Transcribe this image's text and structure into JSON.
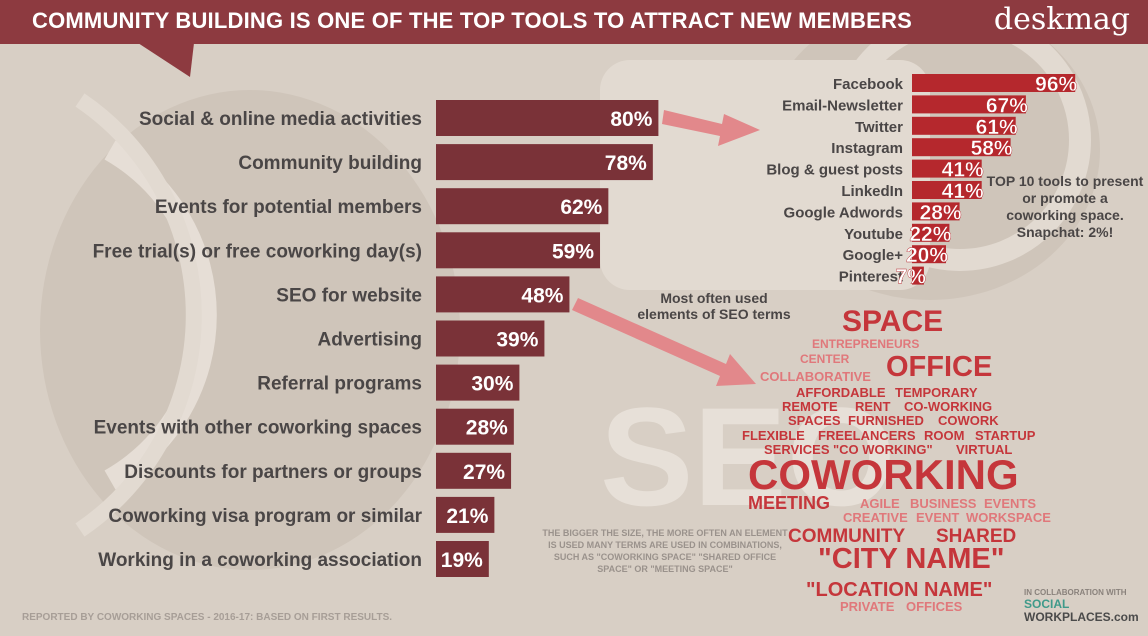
{
  "header": {
    "title": "COMMUNITY BUILDING IS ONE OF THE TOP TOOLS TO ATTRACT NEW MEMBERS",
    "brand": "deskmag"
  },
  "chart_data": [
    {
      "type": "bar",
      "orientation": "horizontal",
      "categories": [
        "Social & online media activities",
        "Community building",
        "Events for potential members",
        "Free trial(s) or free coworking day(s)",
        "SEO for website",
        "Advertising",
        "Referral programs",
        "Events with other coworking spaces",
        "Discounts for partners or groups",
        "Coworking visa program or similar",
        "Working in a coworking association"
      ],
      "values": [
        80,
        78,
        62,
        59,
        48,
        39,
        30,
        28,
        27,
        21,
        19
      ],
      "value_labels": [
        "80%",
        "78%",
        "62%",
        "59%",
        "48%",
        "39%",
        "30%",
        "28%",
        "27%",
        "21%",
        "19%"
      ],
      "bar_color": "#7a3238"
    },
    {
      "type": "bar",
      "orientation": "horizontal",
      "categories": [
        "Facebook",
        "Email-Newsletter",
        "Twitter",
        "Instagram",
        "Blog & guest posts",
        "LinkedIn",
        "Google Adwords",
        "Youtube",
        "Google+",
        "Pinterest"
      ],
      "values": [
        96,
        67,
        61,
        58,
        41,
        41,
        28,
        22,
        20,
        7
      ],
      "value_labels": [
        "96%",
        "67%",
        "61%",
        "58%",
        "41%",
        "41%",
        "28%",
        "22%",
        "20%",
        "7%"
      ],
      "bar_color": "#b5282d"
    }
  ],
  "notes": {
    "seo": "Most often used elements of SEO terms",
    "top10": "TOP 10 tools to present or promote a coworking space. Snapchat: 2%!",
    "legend": "THE BIGGER THE SIZE, THE MORE OFTEN AN ELEMENT IS USED MANY TERMS ARE USED IN COMBINATIONS, SUCH AS \"COWORKING SPACE\" \"SHARED OFFICE SPACE\" OR \"MEETING SPACE\"",
    "footer": "REPORTED BY COWORKING SPACES - 2016-17: BASED ON FIRST RESULTS.",
    "collab": "IN COLLABORATION WITH",
    "partner_1": "SOCIAL",
    "partner_2": "WORKPLACES",
    "partner_3": ".com"
  },
  "wordcloud": [
    "SPACE",
    "ENTREPRENEURS",
    "CENTER",
    "OFFICE",
    "COLLABORATIVE",
    "AFFORDABLE",
    "TEMPORARY",
    "REMOTE",
    "RENT",
    "CO-WORKING",
    "SPACES",
    "FURNISHED",
    "COWORK",
    "FLEXIBLE",
    "FREELANCERS",
    "ROOM",
    "STARTUP",
    "SERVICES",
    "\"CO WORKING\"",
    "VIRTUAL",
    "COWORKING",
    "MEETING",
    "AGILE",
    "BUSINESS",
    "EVENTS",
    "CREATIVE",
    "EVENT",
    "WORKSPACE",
    "COMMUNITY",
    "SHARED",
    "\"CITY NAME\"",
    "\"LOCATION NAME\"",
    "PRIVATE",
    "OFFICES"
  ],
  "colors": {
    "header": "#8d3a40",
    "background": "#d8cfc5",
    "main_bar": "#7a3238",
    "social_bar": "#b5282d",
    "cloud_strong": "#c5363b",
    "cloud_light": "#e0787b",
    "arrow": "#e2888b",
    "label_text": "#4a4646"
  }
}
